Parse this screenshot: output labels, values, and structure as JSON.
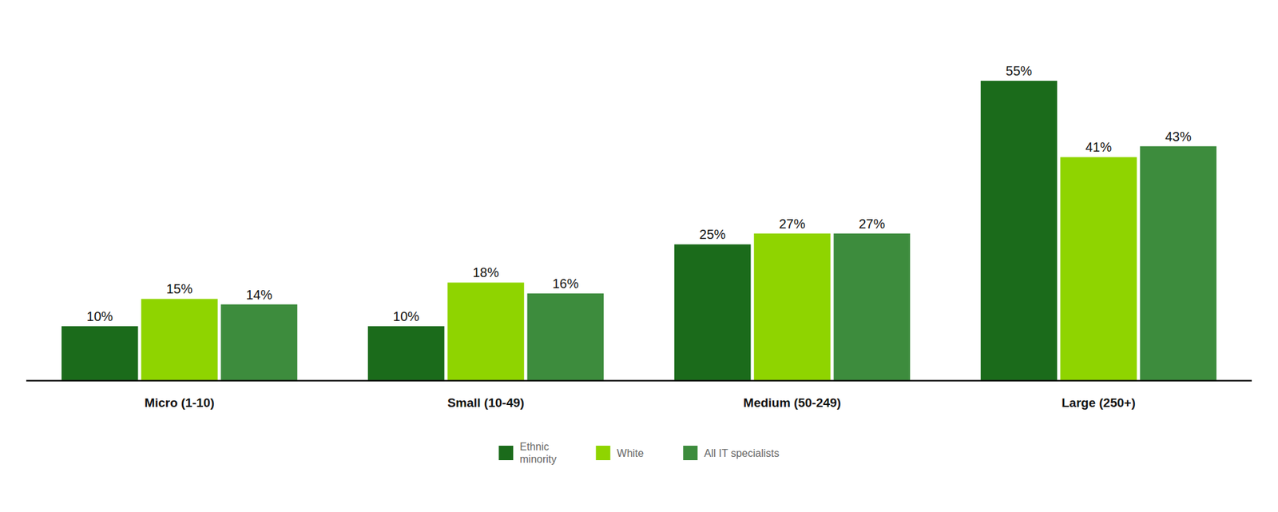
{
  "chart_data": {
    "type": "bar",
    "categories": [
      "Micro (1-10)",
      "Small (10-49)",
      "Medium (50-249)",
      "Large (250+)"
    ],
    "series": [
      {
        "name": "Ethnic\nminority",
        "color": "#1b6b1b",
        "values": [
          10,
          10,
          25,
          55
        ],
        "value_labels": [
          "10%",
          "10%",
          "25%",
          "55%"
        ]
      },
      {
        "name": "White",
        "color": "#8fd400",
        "values": [
          15,
          18,
          27,
          41
        ],
        "value_labels": [
          "15%",
          "18%",
          "27%",
          "41%"
        ]
      },
      {
        "name": "All IT specialists",
        "color": "#3d8c3d",
        "values": [
          14,
          16,
          27,
          43
        ],
        "value_labels": [
          "14%",
          "16%",
          "27%",
          "43%"
        ]
      }
    ],
    "ylim": [
      0,
      65
    ],
    "grid": false,
    "legend": "bottom",
    "data_labels": true,
    "tick_labels": "x"
  }
}
